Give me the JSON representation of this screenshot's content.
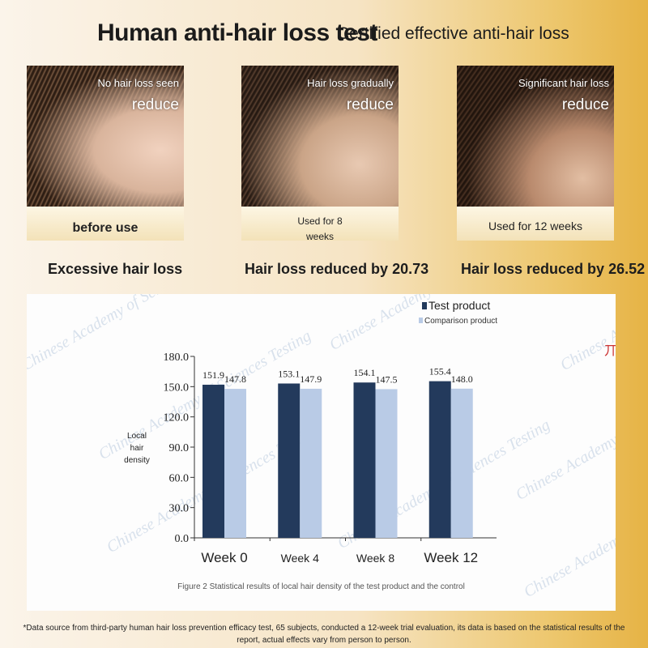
{
  "header": {
    "title": "Human anti-hair loss test",
    "subtitle": "Certified effective anti-hair loss"
  },
  "photos": [
    {
      "top_text": "No hair loss seen",
      "overlay": "reduce",
      "bottom_text": "before use",
      "caption": "Excessive hair loss"
    },
    {
      "top_text": "Hair loss gradually",
      "overlay": "reduce",
      "bottom_text_lines": [
        "Used for 8",
        "weeks"
      ],
      "caption": "Hair loss reduced by 20.73"
    },
    {
      "top_text": "Significant hair loss",
      "overlay": "reduce",
      "bottom_text": "Used for 12 weeks",
      "caption": "Hair loss reduced by 26.52"
    }
  ],
  "watermark": "Chinese Academy of Sciences Testing",
  "chart_data": {
    "type": "bar",
    "categories": [
      "Week 0",
      "Week 4",
      "Week 8",
      "Week 12"
    ],
    "series": [
      {
        "name": "Test product",
        "values": [
          151.9,
          153.1,
          154.1,
          155.4
        ],
        "color": "#233a5c"
      },
      {
        "name": "Comparison product",
        "values": [
          147.8,
          147.9,
          147.5,
          148.0
        ],
        "color": "#b9cbe6"
      }
    ],
    "value_labels": [
      [
        "151.9",
        "153.1",
        "154.1",
        "155.4"
      ],
      [
        "147.8",
        "147.9",
        "147.5",
        "148.0"
      ]
    ],
    "yticks": [
      "0.0",
      "30.0",
      "60.0",
      "90.0",
      "120.0",
      "150.0",
      "180.0"
    ],
    "ylim": [
      0,
      180
    ],
    "ylabel_lines": [
      "Local",
      "hair",
      "density"
    ],
    "legend_position": "top-right",
    "grid": false,
    "figure_caption": "Figure 2 Statistical results of local hair density of the test product and the control"
  },
  "footnote": "*Data source from third-party human hair loss prevention efficacy test, 65 subjects, conducted a 12-week trial evaluation, its data is based on the statistical results of the report, actual effects vary from person to person."
}
